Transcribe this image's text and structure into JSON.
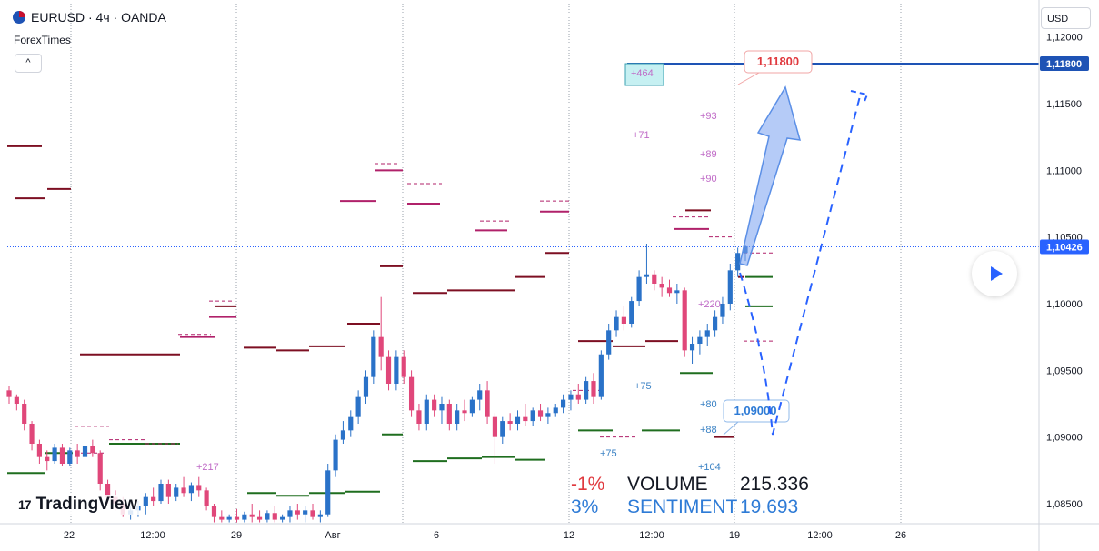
{
  "header": {
    "symbol_line": "EURUSD · 4ч · OANDA",
    "source": "ForexTimes",
    "collapse_icon": "^"
  },
  "currency_button": "USD",
  "price_axis": {
    "ticks": [
      "1,12000",
      "1,11500",
      "1,11000",
      "1,10500",
      "1,10000",
      "1,09500",
      "1,09000",
      "1,08500"
    ],
    "tick_values": [
      1.12,
      1.115,
      1.11,
      1.105,
      1.1,
      1.095,
      1.09,
      1.085
    ],
    "target_label": "1,11800",
    "last_price_label": "1,10426",
    "target_value": 1.118,
    "last_price_value": 1.10426
  },
  "time_axis": {
    "ticks": [
      "22",
      "12:00",
      "29",
      "Авг",
      "6",
      "12",
      "12:00",
      "19",
      "12:00",
      "26"
    ]
  },
  "annotations": {
    "target_callout": "1,11800",
    "support_callout": "1,09000",
    "box_label": "+464",
    "numbers": [
      "+93",
      "+71",
      "+89",
      "+90",
      "+220",
      "+75",
      "+80",
      "+88",
      "+75",
      "+104",
      "+217"
    ]
  },
  "stats": {
    "row1": {
      "pct": "-1%",
      "label": "VOLUME",
      "value": "215.336"
    },
    "row2": {
      "pct": "3%",
      "label": "SENTIMENT",
      "value": "19.693"
    }
  },
  "brand": "TradingView",
  "colors": {
    "bull": "#2a72c8",
    "bear": "#e0477a",
    "target_line": "#1e53b5",
    "last_price": "#2962ff",
    "level_dark_red": "#7d0f22",
    "level_magenta": "#b0216a",
    "level_green": "#1f6e1f",
    "annotation_purple": "#c06bc7"
  },
  "chart_data": {
    "type": "candlestick",
    "timeframe": "4h",
    "y_range": [
      1.0835,
      1.1225
    ],
    "candles": [
      [
        1.0935,
        1.0938,
        1.0925,
        1.093
      ],
      [
        1.093,
        1.0932,
        1.092,
        1.0925
      ],
      [
        1.0925,
        1.0928,
        1.0905,
        1.091
      ],
      [
        1.091,
        1.0912,
        1.089,
        1.0895
      ],
      [
        1.0895,
        1.0898,
        1.088,
        1.0885
      ],
      [
        1.0885,
        1.089,
        1.0875,
        1.0882
      ],
      [
        1.0882,
        1.0895,
        1.088,
        1.0892
      ],
      [
        1.0892,
        1.0895,
        1.0878,
        1.088
      ],
      [
        1.088,
        1.0892,
        1.0878,
        1.089
      ],
      [
        1.089,
        1.0895,
        1.088,
        1.0885
      ],
      [
        1.0885,
        1.0895,
        1.0882,
        1.0893
      ],
      [
        1.0893,
        1.0898,
        1.0885,
        1.0888
      ],
      [
        1.0888,
        1.089,
        1.086,
        1.0865
      ],
      [
        1.0865,
        1.0868,
        1.085,
        1.0855
      ],
      [
        1.0855,
        1.086,
        1.0845,
        1.085
      ],
      [
        1.085,
        1.0855,
        1.084,
        1.0842
      ],
      [
        1.0842,
        1.0848,
        1.0838,
        1.0845
      ],
      [
        1.0845,
        1.0852,
        1.084,
        1.0848
      ],
      [
        1.0848,
        1.0858,
        1.0842,
        1.0855
      ],
      [
        1.0855,
        1.0862,
        1.0848,
        1.0852
      ],
      [
        1.0852,
        1.0868,
        1.085,
        1.0865
      ],
      [
        1.0865,
        1.0868,
        1.085,
        1.0855
      ],
      [
        1.0855,
        1.0865,
        1.0852,
        1.0862
      ],
      [
        1.0862,
        1.087,
        1.0855,
        1.0858
      ],
      [
        1.0858,
        1.0866,
        1.0852,
        1.0864
      ],
      [
        1.0864,
        1.087,
        1.0855,
        1.086
      ],
      [
        1.086,
        1.0862,
        1.0845,
        1.0848
      ],
      [
        1.0848,
        1.085,
        1.0836,
        1.084
      ],
      [
        1.084,
        1.0845,
        1.0836,
        1.0838
      ],
      [
        1.0838,
        1.0842,
        1.0836,
        1.084
      ],
      [
        1.084,
        1.0846,
        1.0836,
        1.0838
      ],
      [
        1.0838,
        1.0844,
        1.0836,
        1.0842
      ],
      [
        1.0842,
        1.085,
        1.0836,
        1.084
      ],
      [
        1.084,
        1.0845,
        1.0836,
        1.0838
      ],
      [
        1.0838,
        1.0845,
        1.0836,
        1.0843
      ],
      [
        1.0843,
        1.0848,
        1.0836,
        1.0838
      ],
      [
        1.0838,
        1.0842,
        1.0836,
        1.084
      ],
      [
        1.084,
        1.0848,
        1.0836,
        1.0845
      ],
      [
        1.0845,
        1.085,
        1.0838,
        1.0842
      ],
      [
        1.0842,
        1.0848,
        1.0836,
        1.0845
      ],
      [
        1.0845,
        1.085,
        1.0838,
        1.084
      ],
      [
        1.084,
        1.0845,
        1.0836,
        1.0842
      ],
      [
        1.0842,
        1.088,
        1.084,
        1.0875
      ],
      [
        1.0875,
        1.0902,
        1.087,
        1.0898
      ],
      [
        1.0898,
        1.0912,
        1.0895,
        1.0905
      ],
      [
        1.0905,
        1.092,
        1.09,
        1.0915
      ],
      [
        1.0915,
        1.0935,
        1.091,
        1.093
      ],
      [
        1.093,
        1.095,
        1.0925,
        1.0945
      ],
      [
        1.0945,
        1.098,
        1.094,
        1.0975
      ],
      [
        1.0975,
        1.1005,
        1.095,
        1.096
      ],
      [
        1.096,
        1.0965,
        1.0935,
        1.094
      ],
      [
        1.094,
        1.0965,
        1.0935,
        1.096
      ],
      [
        1.096,
        1.0965,
        1.094,
        1.0945
      ],
      [
        1.0945,
        1.095,
        1.0915,
        1.092
      ],
      [
        1.092,
        1.0925,
        1.0905,
        1.091
      ],
      [
        1.091,
        1.0932,
        1.0905,
        1.0928
      ],
      [
        1.0928,
        1.0932,
        1.0915,
        1.092
      ],
      [
        1.092,
        1.093,
        1.091,
        1.0925
      ],
      [
        1.0925,
        1.0928,
        1.0905,
        1.091
      ],
      [
        1.091,
        1.0925,
        1.0905,
        1.092
      ],
      [
        1.092,
        1.0928,
        1.0912,
        1.0918
      ],
      [
        1.0918,
        1.093,
        1.0915,
        1.0928
      ],
      [
        1.0928,
        1.094,
        1.092,
        1.0935
      ],
      [
        1.0935,
        1.0942,
        1.091,
        1.0915
      ],
      [
        1.0915,
        1.0918,
        1.088,
        1.09
      ],
      [
        1.09,
        1.0915,
        1.0895,
        1.0912
      ],
      [
        1.0912,
        1.0918,
        1.0905,
        1.091
      ],
      [
        1.091,
        1.092,
        1.0905,
        1.0915
      ],
      [
        1.0915,
        1.0925,
        1.0908,
        1.0912
      ],
      [
        1.0912,
        1.0922,
        1.0908,
        1.092
      ],
      [
        1.092,
        1.0925,
        1.0912,
        1.0915
      ],
      [
        1.0915,
        1.0922,
        1.091,
        1.0918
      ],
      [
        1.0918,
        1.0925,
        1.0915,
        1.0922
      ],
      [
        1.0922,
        1.0932,
        1.0918,
        1.0928
      ],
      [
        1.0928,
        1.0935,
        1.092,
        1.0932
      ],
      [
        1.0932,
        1.094,
        1.0925,
        1.0928
      ],
      [
        1.0928,
        1.0945,
        1.0925,
        1.0942
      ],
      [
        1.0942,
        1.0948,
        1.0925,
        1.093
      ],
      [
        1.093,
        1.0965,
        1.0928,
        1.0962
      ],
      [
        1.0962,
        1.0985,
        1.0958,
        1.098
      ],
      [
        1.098,
        1.0995,
        1.0975,
        1.099
      ],
      [
        1.099,
        1.0998,
        1.098,
        1.0985
      ],
      [
        1.0985,
        1.1005,
        1.0982,
        1.1002
      ],
      [
        1.1002,
        1.1025,
        1.0998,
        1.102
      ],
      [
        1.102,
        1.1045,
        1.1015,
        1.1022
      ],
      [
        1.1022,
        1.1025,
        1.101,
        1.1015
      ],
      [
        1.1015,
        1.102,
        1.1005,
        1.1012
      ],
      [
        1.1012,
        1.1018,
        1.1005,
        1.1008
      ],
      [
        1.1008,
        1.1015,
        1.1,
        1.101
      ],
      [
        1.101,
        1.1012,
        1.096,
        1.0965
      ],
      [
        1.0965,
        1.0975,
        1.0955,
        1.097
      ],
      [
        1.097,
        1.098,
        1.0962,
        1.0975
      ],
      [
        1.0975,
        1.0985,
        1.0968,
        1.098
      ],
      [
        1.098,
        1.0995,
        1.0975,
        1.099
      ],
      [
        1.099,
        1.1005,
        1.0985,
        1.1
      ],
      [
        1.1,
        1.103,
        1.0995,
        1.1025
      ],
      [
        1.1025,
        1.1042,
        1.102,
        1.1038
      ],
      [
        1.1038,
        1.1044,
        1.1032,
        1.1043
      ]
    ]
  }
}
